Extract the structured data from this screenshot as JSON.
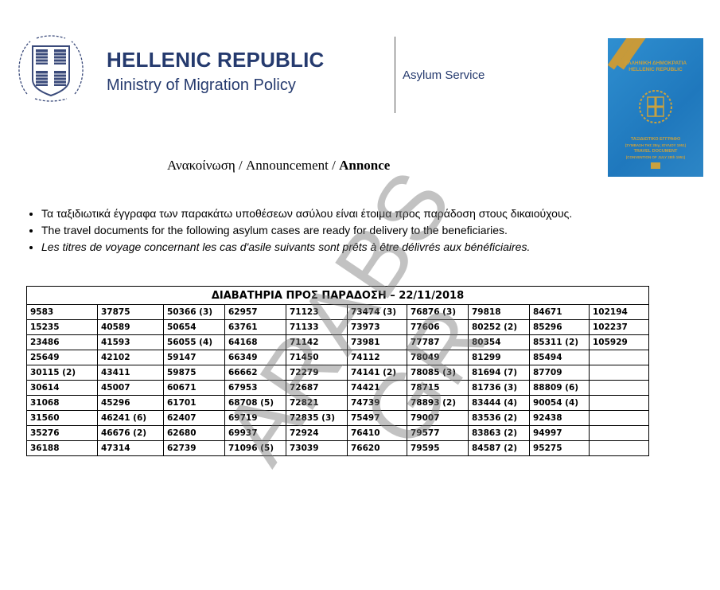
{
  "header": {
    "title": "HELLENIC REPUBLIC",
    "ministry": "Ministry of Migration Policy",
    "service": "Asylum Service"
  },
  "passport": {
    "line1": "ΕΛΛΗΝΙΚΗ ΔΗΜΟΚΡΑΤΙΑ",
    "line2": "HELLENIC REPUBLIC",
    "line3": "ΤΑΞΙΔΙΩΤΙΚΟ ΕΓΓΡΑΦΟ",
    "line4": "(ΣΥΜΒΑΣΗ ΤΗΣ 28ης ΙΟΥΛΙΟΥ 1951)",
    "line5": "TRAVEL DOCUMENT",
    "line6": "(CONVENTION OF JULY 28th 1951)"
  },
  "announcement": {
    "prefix": "Ανακοίνωση / Announcement / ",
    "bold": "Annonce"
  },
  "bullets": [
    "Τα ταξιδιωτικά έγγραφα των παρακάτω υποθέσεων ασύλου είναι έτοιμα προς παράδοση στους δικαιούχους.",
    "The travel documents for the following asylum cases are ready for delivery to the beneficiaries.",
    "Les titres de voyage concernant les cas d'asile suivants sont prêts à être délivrés aux bénéficiaires."
  ],
  "table": {
    "title": "ΔΙΑΒΑΤΗΡΙΑ ΠΡΟΣ ΠΑΡΑΔΟΣΗ – 22/11/2018",
    "rows": [
      [
        "9583",
        "37875",
        "50366 (3)",
        "62957",
        "71123",
        "73474 (3)",
        "76876 (3)",
        "79818",
        "84671",
        "102194"
      ],
      [
        "15235",
        "40589",
        "50654",
        "63761",
        "71133",
        "73973",
        "77606",
        "80252 (2)",
        "85296",
        "102237"
      ],
      [
        "23486",
        "41593",
        "56055 (4)",
        "64168",
        "71142",
        "73981",
        "77787",
        "80354",
        "85311 (2)",
        "105929"
      ],
      [
        "25649",
        "42102",
        "59147",
        "66349",
        "71450",
        "74112",
        "78049",
        "81299",
        "85494",
        ""
      ],
      [
        "30115 (2)",
        "43411",
        "59875",
        "66662",
        "72279",
        "74141 (2)",
        "78085 (3)",
        "81694 (7)",
        "87709",
        ""
      ],
      [
        "30614",
        "45007",
        "60671",
        "67953",
        "72687",
        "74421",
        "78715",
        "81736 (3)",
        "88809 (6)",
        ""
      ],
      [
        "31068",
        "45296",
        "61701",
        "68708 (5)",
        "72821",
        "74739",
        "78893 (2)",
        "83444 (4)",
        "90054 (4)",
        ""
      ],
      [
        "31560",
        "46241 (6)",
        "62407",
        "69719",
        "72835 (3)",
        "75497",
        "79007",
        "83536 (2)",
        "92438",
        ""
      ],
      [
        "35276",
        "46676 (2)",
        "62680",
        "69937",
        "72924",
        "76410",
        "79577",
        "83863 (2)",
        "94997",
        ""
      ],
      [
        "36188",
        "47314",
        "62739",
        "71096 (5)",
        "73039",
        "76620",
        "79595",
        "84587 (2)",
        "95275",
        ""
      ]
    ]
  },
  "watermark": "ARABS GR",
  "colors": {
    "brand": "#253a6e",
    "passport": "#1f78bd",
    "gold": "#c9a13e"
  }
}
